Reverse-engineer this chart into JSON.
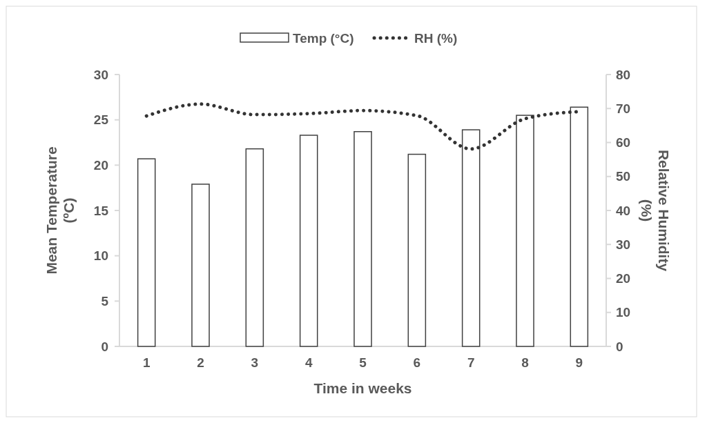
{
  "chart_data": {
    "type": "bar",
    "categories": [
      "1",
      "2",
      "3",
      "4",
      "5",
      "6",
      "7",
      "8",
      "9"
    ],
    "xlabel": "Time in weeks",
    "ylabel": "Mean Temperature (ºC)",
    "y2label": "Relative Humidity (%)",
    "ylim": [
      0,
      30
    ],
    "yticks": [
      0,
      5,
      10,
      15,
      20,
      25,
      30
    ],
    "y2lim": [
      0,
      80
    ],
    "y2ticks": [
      0,
      10,
      20,
      30,
      40,
      50,
      60,
      70,
      80
    ],
    "legend": "top",
    "series": [
      {
        "name": "Temp (°C)",
        "color": "#ffffff",
        "values": [
          20.7,
          17.9,
          21.8,
          23.3,
          23.7,
          21.2,
          23.9,
          25.5,
          26.4
        ]
      },
      {
        "name": "RH (%)",
        "type": "line",
        "axis": "y2",
        "color": "#333333",
        "line_style": "dotted",
        "values": [
          67.8,
          71.3,
          68.2,
          68.5,
          69.4,
          67.9,
          58.1,
          67.0,
          69.1
        ]
      }
    ]
  }
}
